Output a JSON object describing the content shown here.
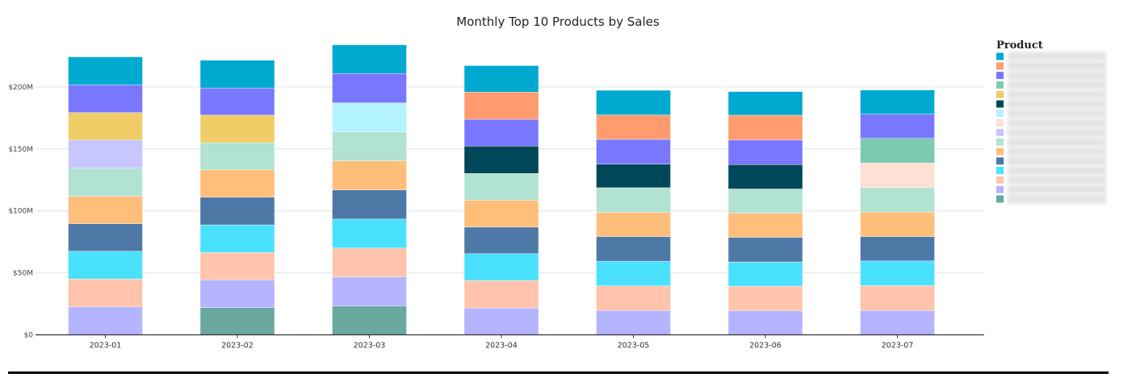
{
  "chart_data": {
    "type": "bar",
    "stacked": true,
    "title": "Monthly Top 10 Products by Sales",
    "xlabel": "",
    "ylabel": "",
    "ylim": [
      0,
      240
    ],
    "y_unit": "millions USD",
    "y_ticks": [
      0,
      50,
      100,
      150,
      200
    ],
    "y_tick_labels": [
      "$0",
      "$50M",
      "$100M",
      "$150M",
      "$200M"
    ],
    "grid": true,
    "categories": [
      "2023-01",
      "2023-02",
      "2023-03",
      "2023-04",
      "2023-05",
      "2023-06",
      "2023-07"
    ],
    "legend": {
      "title": "Product",
      "placement": "right",
      "labels_redacted": true
    },
    "products": [
      {
        "id": 0,
        "color": "#00a9d0"
      },
      {
        "id": 1,
        "color": "#ff9b6e"
      },
      {
        "id": 2,
        "color": "#7a77ff"
      },
      {
        "id": 3,
        "color": "#7ccbb0"
      },
      {
        "id": 4,
        "color": "#f0cd66"
      },
      {
        "id": 5,
        "color": "#00475a"
      },
      {
        "id": 6,
        "color": "#b3f2ff"
      },
      {
        "id": 7,
        "color": "#ffe0d4"
      },
      {
        "id": 8,
        "color": "#c8c6ff"
      },
      {
        "id": 9,
        "color": "#b1e2d2"
      },
      {
        "id": 10,
        "color": "#ffbe7a"
      },
      {
        "id": 11,
        "color": "#4e79a7"
      },
      {
        "id": 12,
        "color": "#4ae1ff"
      },
      {
        "id": 13,
        "color": "#ffc4ab"
      },
      {
        "id": 14,
        "color": "#b4b4ff"
      },
      {
        "id": 15,
        "color": "#6aa8a0"
      }
    ],
    "stacks": [
      {
        "category": "2023-01",
        "segments": [
          {
            "product": 14,
            "value": 22.6
          },
          {
            "product": 13,
            "value": 22.5
          },
          {
            "product": 12,
            "value": 22.3
          },
          {
            "product": 11,
            "value": 22.3
          },
          {
            "product": 10,
            "value": 22.1
          },
          {
            "product": 9,
            "value": 22.7
          },
          {
            "product": 8,
            "value": 22.7
          },
          {
            "product": 4,
            "value": 22.1
          },
          {
            "product": 2,
            "value": 22.3
          },
          {
            "product": 0,
            "value": 22.7
          }
        ]
      },
      {
        "category": "2023-02",
        "segments": [
          {
            "product": 15,
            "value": 22.0
          },
          {
            "product": 14,
            "value": 22.3
          },
          {
            "product": 13,
            "value": 22.1
          },
          {
            "product": 12,
            "value": 22.3
          },
          {
            "product": 11,
            "value": 22.3
          },
          {
            "product": 10,
            "value": 22.1
          },
          {
            "product": 9,
            "value": 21.9
          },
          {
            "product": 4,
            "value": 22.3
          },
          {
            "product": 2,
            "value": 21.9
          },
          {
            "product": 0,
            "value": 22.3
          }
        ]
      },
      {
        "category": "2023-03",
        "segments": [
          {
            "product": 15,
            "value": 23.2
          },
          {
            "product": 14,
            "value": 23.4
          },
          {
            "product": 13,
            "value": 23.4
          },
          {
            "product": 12,
            "value": 23.4
          },
          {
            "product": 11,
            "value": 23.6
          },
          {
            "product": 10,
            "value": 23.4
          },
          {
            "product": 9,
            "value": 23.4
          },
          {
            "product": 6,
            "value": 23.4
          },
          {
            "product": 2,
            "value": 23.6
          },
          {
            "product": 0,
            "value": 23.2
          }
        ]
      },
      {
        "category": "2023-04",
        "segments": [
          {
            "product": 14,
            "value": 21.6
          },
          {
            "product": 13,
            "value": 22.3
          },
          {
            "product": 12,
            "value": 21.6
          },
          {
            "product": 11,
            "value": 21.4
          },
          {
            "product": 10,
            "value": 21.7
          },
          {
            "product": 9,
            "value": 21.6
          },
          {
            "product": 5,
            "value": 22.1
          },
          {
            "product": 2,
            "value": 21.6
          },
          {
            "product": 1,
            "value": 21.9
          },
          {
            "product": 0,
            "value": 21.4
          }
        ]
      },
      {
        "category": "2023-05",
        "segments": [
          {
            "product": 14,
            "value": 19.6
          },
          {
            "product": 13,
            "value": 19.9
          },
          {
            "product": 12,
            "value": 19.9
          },
          {
            "product": 11,
            "value": 19.9
          },
          {
            "product": 10,
            "value": 19.5
          },
          {
            "product": 9,
            "value": 19.9
          },
          {
            "product": 5,
            "value": 19.1
          },
          {
            "product": 2,
            "value": 19.9
          },
          {
            "product": 1,
            "value": 19.7
          },
          {
            "product": 0,
            "value": 19.9
          }
        ]
      },
      {
        "category": "2023-06",
        "segments": [
          {
            "product": 14,
            "value": 19.4
          },
          {
            "product": 13,
            "value": 19.9
          },
          {
            "product": 12,
            "value": 19.5
          },
          {
            "product": 11,
            "value": 19.9
          },
          {
            "product": 10,
            "value": 19.5
          },
          {
            "product": 9,
            "value": 19.5
          },
          {
            "product": 5,
            "value": 19.7
          },
          {
            "product": 2,
            "value": 19.9
          },
          {
            "product": 1,
            "value": 19.9
          },
          {
            "product": 0,
            "value": 19.1
          }
        ]
      },
      {
        "category": "2023-07",
        "segments": [
          {
            "product": 14,
            "value": 19.6
          },
          {
            "product": 13,
            "value": 20.1
          },
          {
            "product": 12,
            "value": 19.9
          },
          {
            "product": 11,
            "value": 19.7
          },
          {
            "product": 10,
            "value": 19.7
          },
          {
            "product": 9,
            "value": 19.7
          },
          {
            "product": 7,
            "value": 19.9
          },
          {
            "product": 3,
            "value": 19.9
          },
          {
            "product": 2,
            "value": 19.5
          },
          {
            "product": 0,
            "value": 19.5
          }
        ]
      }
    ]
  }
}
